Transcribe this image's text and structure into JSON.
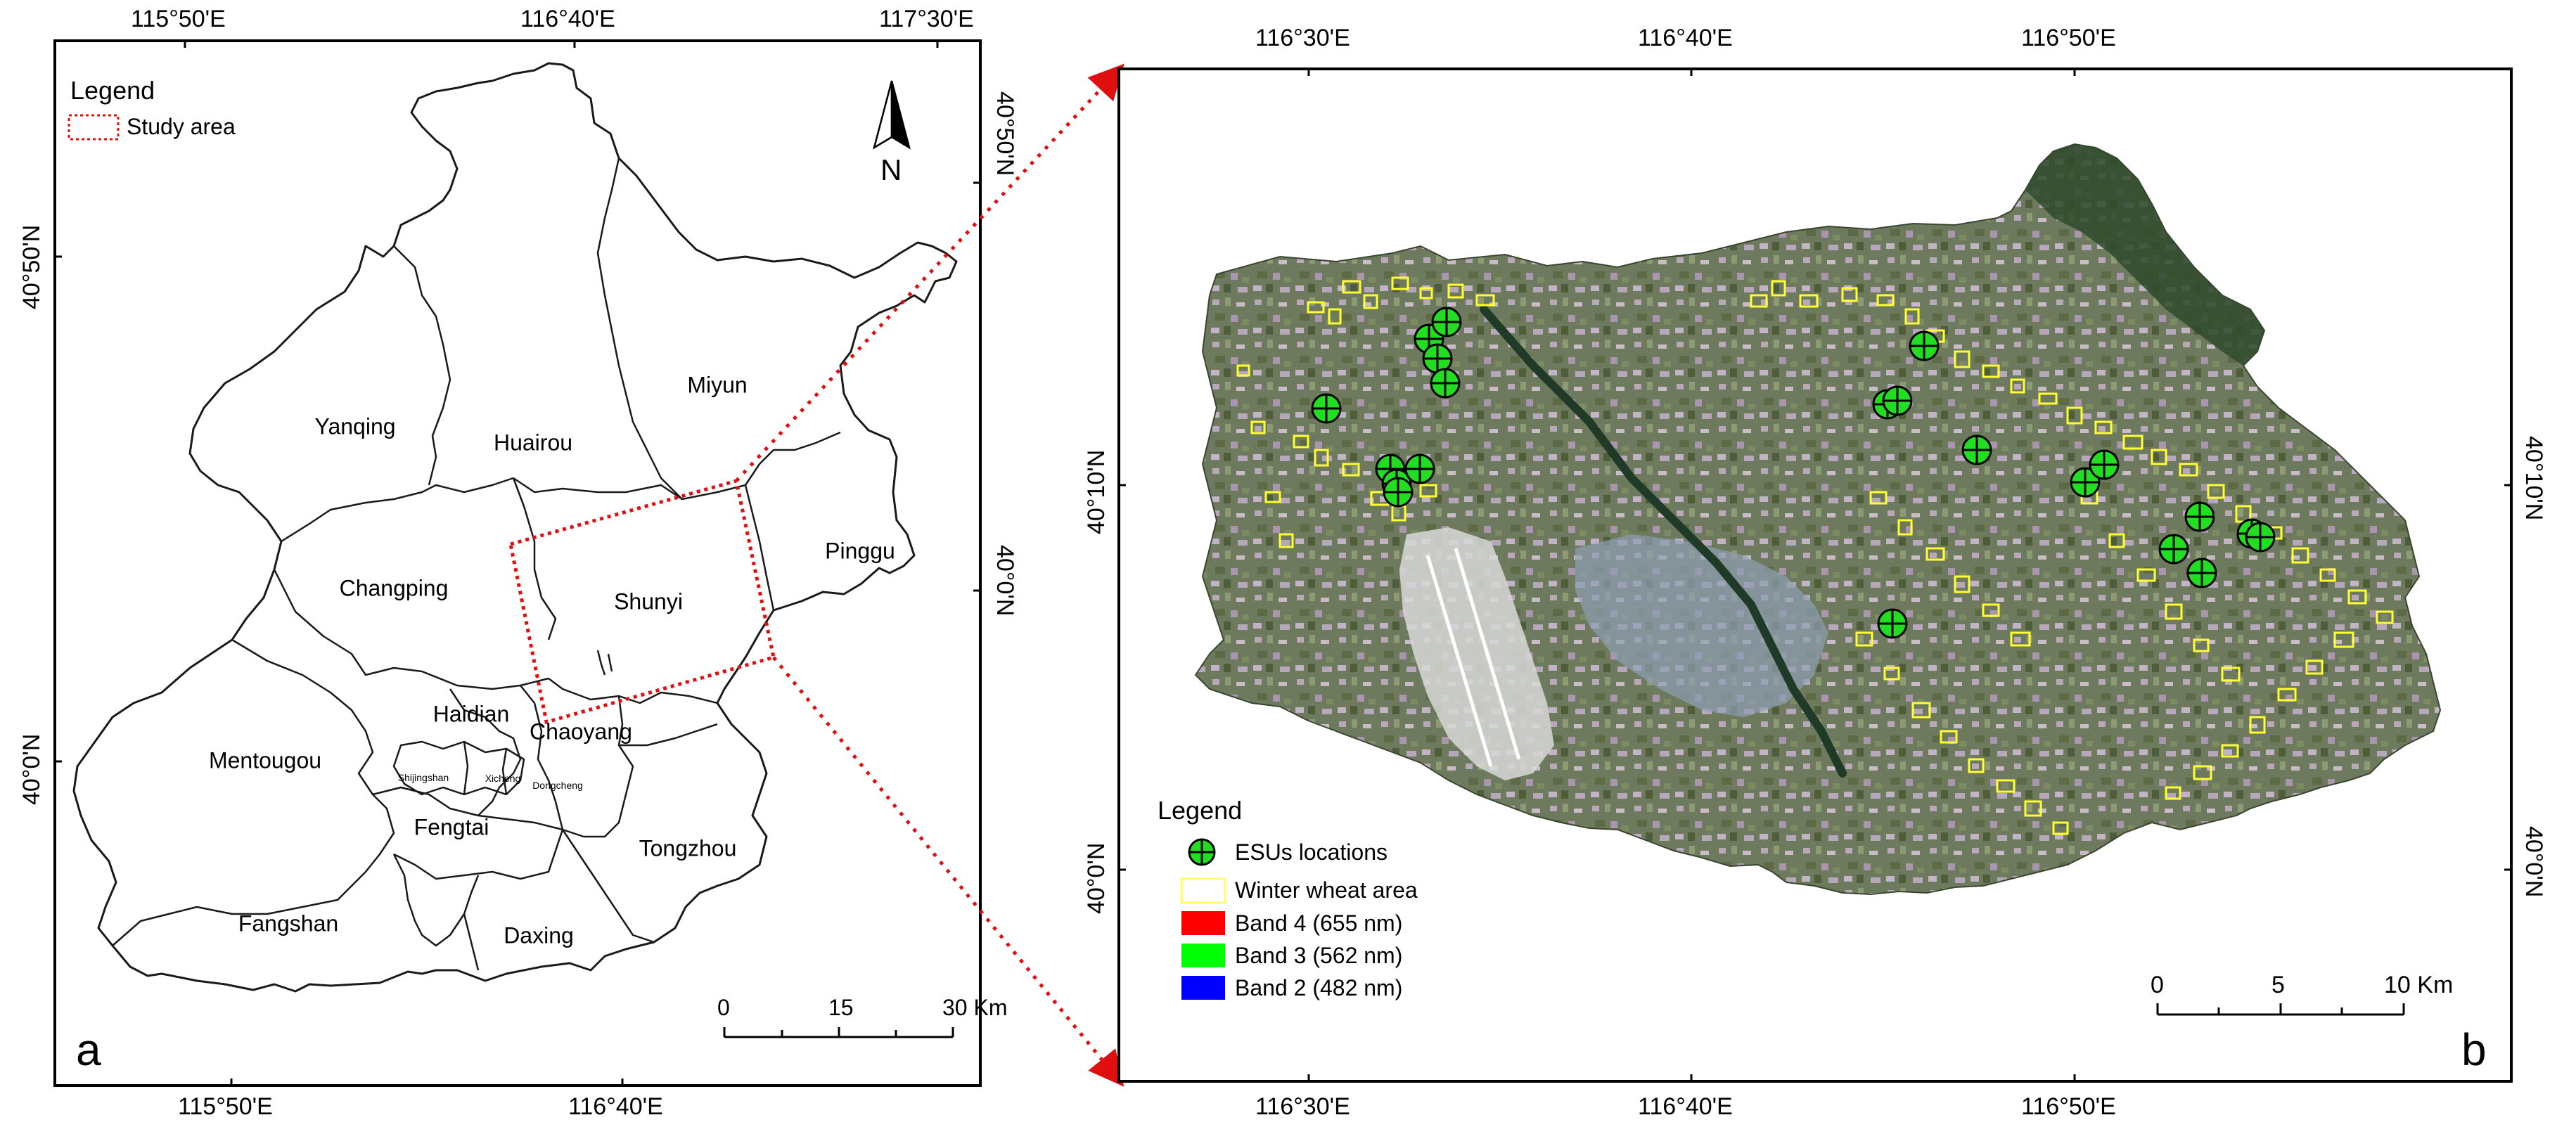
{
  "panel_a": {
    "letter": "a",
    "legend": {
      "title": "Legend",
      "study_area_label": "Study area"
    },
    "north_label": "N",
    "top_ticks": [
      "115°50'E",
      "116°40'E",
      "117°30'E"
    ],
    "bottom_ticks": [
      "115°50'E",
      "116°40'E"
    ],
    "left_ticks": [
      "40°50'N",
      "40°0'N"
    ],
    "right_ticks": [
      "40°50'N",
      "40°0'N"
    ],
    "districts": {
      "yanqing": "Yanqing",
      "huairou": "Huairou",
      "miyun": "Miyun",
      "changping": "Changping",
      "shunyi": "Shunyi",
      "pinggu": "Pinggu",
      "haidian": "Haidian",
      "chaoyang": "Chaoyang",
      "mentougou": "Mentougou",
      "shijingshan": "Shijingshan",
      "xicheng": "Xicheng",
      "dongcheng": "Dongcheng",
      "fengtai": "Fengtai",
      "tongzhou": "Tongzhou",
      "fangshan": "Fangshan",
      "daxing": "Daxing"
    },
    "scale": {
      "t0": "0",
      "t1": "15",
      "t2": "30 Km"
    }
  },
  "panel_b": {
    "letter": "b",
    "top_ticks": [
      "116°30'E",
      "116°40'E",
      "116°50'E"
    ],
    "bottom_ticks": [
      "116°30'E",
      "116°40'E",
      "116°50'E"
    ],
    "left_ticks": [
      "40°10'N",
      "40°0'N"
    ],
    "right_ticks": [
      "40°10'N",
      "40°0'N"
    ],
    "legend": {
      "title": "Legend",
      "items": [
        {
          "label": "ESUs locations",
          "symbol": "esu"
        },
        {
          "label": "Winter wheat area",
          "symbol": "outline",
          "color": "#ffff66"
        },
        {
          "label": "Band 4 (655 nm)",
          "symbol": "fill",
          "color": "#ff0000"
        },
        {
          "label": "Band 3 (562 nm)",
          "symbol": "fill",
          "color": "#00ff00"
        },
        {
          "label": "Band 2 (482 nm)",
          "symbol": "fill",
          "color": "#0000ff"
        }
      ]
    },
    "scale": {
      "t0": "0",
      "t1": "5",
      "t2": "10 Km"
    }
  },
  "colors": {
    "study_area": "#e01010",
    "esu_fill": "#22dd22",
    "wheat_outline": "#ffff33"
  }
}
